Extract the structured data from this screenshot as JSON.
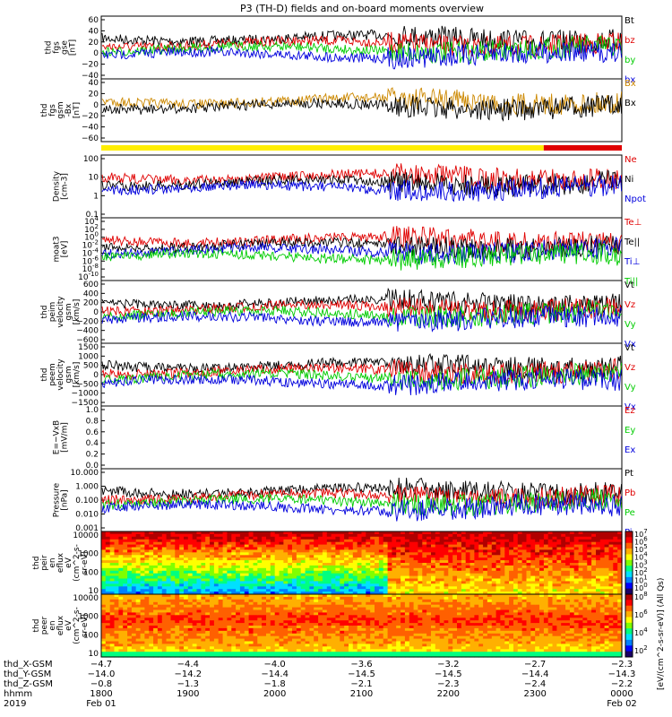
{
  "title": "P3 (TH-D) fields and on-board moments overview",
  "colors": {
    "black": "#000000",
    "red": "#e00000",
    "green": "#00cc00",
    "blue": "#0000dd",
    "yellow": "#ffee00"
  },
  "chart_data": [
    {
      "type": "line",
      "id": "fgs_gse",
      "ylabel": [
        "thd",
        "fgs",
        "gse",
        "[nT]"
      ],
      "yticks": [
        "60",
        "40",
        "20",
        "0",
        "−20",
        "−40"
      ],
      "ylim": [
        -40,
        60
      ],
      "series": [
        {
          "name": "Bt",
          "color": "#000000",
          "level": 20,
          "noise": 6
        },
        {
          "name": "bz",
          "color": "#e00000",
          "level": 10,
          "noise": 8
        },
        {
          "name": "by",
          "color": "#00cc00",
          "level": -8,
          "noise": 8
        },
        {
          "name": "bx",
          "color": "#0000dd",
          "level": -15,
          "noise": 8
        }
      ]
    },
    {
      "type": "line",
      "id": "fgs_gsm",
      "ylabel": [
        "thd",
        "fgs",
        "gsm",
        "-Bx",
        "[nT]"
      ],
      "yticks": [
        "40",
        "20",
        "0",
        "−20",
        "−40",
        "−60"
      ],
      "ylim": [
        -70,
        40
      ],
      "series": [
        {
          "name": "Bx",
          "color": "#cc8800",
          "level": 5,
          "noise": 8
        },
        {
          "name": "Bx",
          "color": "#000000",
          "level": -5,
          "noise": 10
        }
      ]
    },
    {
      "type": "line",
      "id": "density",
      "ylabel": [
        "Density",
        "[cm-3]"
      ],
      "yticks": [
        "100",
        "10",
        "1",
        "0.1"
      ],
      "ylim": [
        0.05,
        200
      ],
      "series": [
        {
          "name": "Ne",
          "color": "#e00000",
          "level": 0.5,
          "noise": 0.5
        },
        {
          "name": "Ni",
          "color": "#000000",
          "level": 0.5,
          "noise": 0.5
        },
        {
          "name": "Npot",
          "color": "#0000dd",
          "level": 0.6,
          "noise": 0.5
        }
      ]
    },
    {
      "type": "line",
      "id": "moat3",
      "ylabel": [
        "moat3",
        "[eV]"
      ],
      "yticks": [
        "10^4",
        "10^2",
        "10^0",
        "10^-2",
        "10^-4",
        "10^-6",
        "10^-8",
        "10^-10"
      ],
      "series": [
        {
          "name": "Te⊥",
          "color": "#e00000",
          "level": 2000,
          "noise": 0.1
        },
        {
          "name": "Te||",
          "color": "#000000",
          "level": 3000,
          "noise": 0.1
        },
        {
          "name": "Ti⊥",
          "color": "#0000dd",
          "level": 8000,
          "noise": 0.1
        },
        {
          "name": "Ti||",
          "color": "#00cc00",
          "level": 7000,
          "noise": 0.1
        }
      ]
    },
    {
      "type": "line",
      "id": "peim_velocity",
      "ylabel": [
        "thd",
        "peim",
        "velocity",
        "gsm",
        "[km/s]"
      ],
      "yticks": [
        "600",
        "400",
        "200",
        "0",
        "−200",
        "−400",
        "−600"
      ],
      "ylim": [
        -600,
        600
      ],
      "series": [
        {
          "name": "Vt",
          "color": "#000000",
          "level": 80,
          "noise": 40
        },
        {
          "name": "Vz",
          "color": "#e00000",
          "level": 20,
          "noise": 40
        },
        {
          "name": "Vy",
          "color": "#00cc00",
          "level": -20,
          "noise": 40
        },
        {
          "name": "Vx",
          "color": "#0000dd",
          "level": -40,
          "noise": 40
        }
      ]
    },
    {
      "type": "line",
      "id": "peem_velocity",
      "ylabel": [
        "thd",
        "peem",
        "velocity",
        "gsm",
        "[km/s]"
      ],
      "yticks": [
        "1500",
        "1000",
        "500",
        "0",
        "−500",
        "−1000",
        "−1500"
      ],
      "ylim": [
        -1500,
        1500
      ],
      "series": [
        {
          "name": "Vt",
          "color": "#000000",
          "level": 250,
          "noise": 200
        },
        {
          "name": "Vz",
          "color": "#e00000",
          "level": 0,
          "noise": 100
        },
        {
          "name": "Vy",
          "color": "#00cc00",
          "level": -50,
          "noise": 100
        },
        {
          "name": "Vx",
          "color": "#0000dd",
          "level": -100,
          "noise": 100
        }
      ]
    },
    {
      "type": "line",
      "id": "efield",
      "ylabel": [
        "E=−VxB",
        "[mV/m]"
      ],
      "yticks": [
        "1.0",
        "0.8",
        "0.6",
        "0.4",
        "0.2",
        "0.0"
      ],
      "ylim": [
        0,
        1
      ],
      "series": [
        {
          "name": "Ez",
          "color": "#e00000"
        },
        {
          "name": "Ey",
          "color": "#00cc00"
        },
        {
          "name": "Ex",
          "color": "#0000dd"
        }
      ]
    },
    {
      "type": "line",
      "id": "pressure",
      "ylabel": [
        "Pressure",
        "[nPa]"
      ],
      "yticks": [
        "10.000",
        "1.000",
        "0.100",
        "0.010",
        "0.001"
      ],
      "ylim": [
        0.001,
        10
      ],
      "series": [
        {
          "name": "Pt",
          "color": "#000000",
          "level": 0.5,
          "noise": 0.2
        },
        {
          "name": "Pb",
          "color": "#e00000",
          "level": 0.2,
          "noise": 0.2
        },
        {
          "name": "Pe",
          "color": "#00cc00",
          "level": 0.05,
          "noise": 0.3
        },
        {
          "name": "Pi",
          "color": "#0000dd",
          "level": 0.25,
          "noise": 0.2
        }
      ]
    },
    {
      "type": "heatmap",
      "id": "peir_spec",
      "ylabel": [
        "thd",
        "peir",
        "en",
        "eflux",
        "eV",
        "(cm^2-s-",
        "sr-eV)"
      ],
      "yticks": [
        "10000",
        "1000",
        "100",
        "10"
      ],
      "ylim": [
        5,
        25000
      ]
    },
    {
      "type": "heatmap",
      "id": "peer_spec",
      "ylabel": [
        "thd",
        "peer",
        "en",
        "eflux",
        "eV",
        "(cm^2-s-",
        "sr-eV)"
      ],
      "yticks": [
        "10000",
        "1000",
        "100",
        "10"
      ],
      "ylim": [
        5,
        25000
      ]
    }
  ],
  "colorbar": {
    "label": "[eV/(cm^2-s-sr-eV)] (All Qs)",
    "upper_ticks": [
      "10^7",
      "10^6",
      "10^5",
      "10^4",
      "10^3",
      "10^2",
      "10^1",
      "10^0"
    ],
    "lower_ticks": [
      "10^8",
      "10^6",
      "10^4",
      "10^2"
    ]
  },
  "xaxis": {
    "rows": [
      {
        "label": "thd_X-GSM",
        "values": [
          "−4.7",
          "−4.4",
          "−4.0",
          "−3.6",
          "−3.2",
          "−2.7",
          "−2.3"
        ]
      },
      {
        "label": "thd_Y-GSM",
        "values": [
          "−14.0",
          "−14.2",
          "−14.4",
          "−14.5",
          "−14.5",
          "−14.4",
          "−14.3"
        ]
      },
      {
        "label": "thd_Z-GSM",
        "values": [
          "−0.8",
          "−1.3",
          "−1.8",
          "−2.1",
          "−2.3",
          "−2.4",
          "−2.2"
        ]
      },
      {
        "label": "hhmm",
        "values": [
          "1800",
          "1900",
          "2000",
          "2100",
          "2200",
          "2300",
          "0000"
        ]
      },
      {
        "label": "2019",
        "values": [
          "Feb 01",
          "",
          "",
          "",
          "",
          "",
          "Feb 02"
        ]
      }
    ]
  }
}
